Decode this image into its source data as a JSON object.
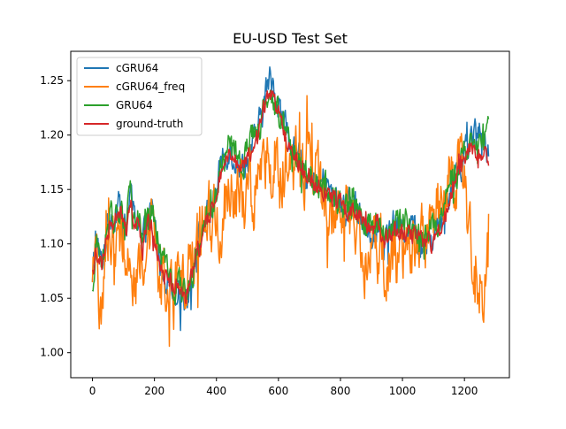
{
  "chart_data": {
    "type": "line",
    "title": "EU-USD Test Set",
    "xlabel": "",
    "ylabel": "",
    "xlim": [
      -70,
      1345
    ],
    "ylim": [
      0.977,
      1.277
    ],
    "xticks": [
      0,
      200,
      400,
      600,
      800,
      1000,
      1200
    ],
    "yticks": [
      1.0,
      1.05,
      1.1,
      1.15,
      1.2,
      1.25
    ],
    "xtick_labels": [
      "0",
      "200",
      "400",
      "600",
      "800",
      "1000",
      "1200"
    ],
    "ytick_labels": [
      "1.00",
      "1.05",
      "1.10",
      "1.15",
      "1.20",
      "1.25"
    ],
    "grid": false,
    "legend_position": "upper-left",
    "n_points": 1280,
    "series": [
      {
        "name": "cGRU64",
        "color": "#1f77b4",
        "noise": 0.012,
        "x": [
          0,
          10,
          20,
          30,
          40,
          50,
          60,
          70,
          80,
          90,
          100,
          110,
          120,
          130,
          140,
          150,
          160,
          170,
          180,
          190,
          200,
          220,
          240,
          260,
          280,
          300,
          320,
          340,
          360,
          380,
          400,
          420,
          440,
          460,
          480,
          500,
          520,
          540,
          560,
          570,
          580,
          590,
          600,
          620,
          640,
          660,
          680,
          700,
          720,
          740,
          760,
          780,
          800,
          820,
          840,
          860,
          880,
          900,
          920,
          940,
          960,
          980,
          1000,
          1020,
          1040,
          1060,
          1080,
          1100,
          1120,
          1140,
          1160,
          1180,
          1200,
          1220,
          1240,
          1260,
          1275
        ],
        "values": [
          1.06,
          1.11,
          1.09,
          1.08,
          1.1,
          1.12,
          1.13,
          1.12,
          1.14,
          1.13,
          1.12,
          1.11,
          1.15,
          1.13,
          1.12,
          1.13,
          1.1,
          1.11,
          1.12,
          1.13,
          1.12,
          1.08,
          1.07,
          1.06,
          1.06,
          1.05,
          1.07,
          1.1,
          1.12,
          1.13,
          1.15,
          1.18,
          1.19,
          1.18,
          1.17,
          1.18,
          1.19,
          1.21,
          1.24,
          1.25,
          1.25,
          1.24,
          1.23,
          1.21,
          1.19,
          1.18,
          1.17,
          1.16,
          1.15,
          1.16,
          1.15,
          1.14,
          1.14,
          1.13,
          1.14,
          1.13,
          1.12,
          1.11,
          1.12,
          1.1,
          1.11,
          1.12,
          1.11,
          1.12,
          1.11,
          1.1,
          1.1,
          1.11,
          1.12,
          1.14,
          1.16,
          1.17,
          1.18,
          1.2,
          1.2,
          1.19,
          1.19
        ]
      },
      {
        "name": "cGRU64_freq",
        "color": "#ff7f0e",
        "noise": 0.026,
        "x": [
          0,
          10,
          20,
          30,
          40,
          50,
          60,
          70,
          80,
          90,
          100,
          110,
          120,
          130,
          140,
          150,
          160,
          170,
          180,
          190,
          200,
          220,
          240,
          260,
          280,
          300,
          320,
          340,
          360,
          380,
          400,
          420,
          440,
          460,
          480,
          500,
          520,
          540,
          560,
          580,
          600,
          620,
          640,
          660,
          680,
          700,
          720,
          740,
          760,
          780,
          800,
          820,
          840,
          860,
          880,
          900,
          920,
          940,
          960,
          980,
          1000,
          1020,
          1040,
          1060,
          1080,
          1100,
          1120,
          1140,
          1160,
          1180,
          1200,
          1220,
          1240,
          1260,
          1275
        ],
        "values": [
          1.05,
          1.08,
          1.06,
          1.05,
          1.07,
          1.1,
          1.11,
          1.1,
          1.13,
          1.12,
          1.11,
          1.09,
          1.09,
          1.08,
          1.07,
          1.08,
          1.08,
          1.1,
          1.11,
          1.12,
          1.1,
          1.06,
          1.06,
          1.05,
          1.06,
          1.08,
          1.09,
          1.1,
          1.11,
          1.12,
          1.12,
          1.13,
          1.14,
          1.14,
          1.14,
          1.15,
          1.15,
          1.16,
          1.17,
          1.17,
          1.17,
          1.17,
          1.17,
          1.17,
          1.17,
          1.16,
          1.16,
          1.15,
          1.14,
          1.13,
          1.13,
          1.12,
          1.11,
          1.1,
          1.09,
          1.09,
          1.09,
          1.08,
          1.08,
          1.09,
          1.09,
          1.1,
          1.1,
          1.1,
          1.12,
          1.13,
          1.14,
          1.15,
          1.16,
          1.17,
          1.16,
          1.1,
          1.05,
          1.06,
          1.09
        ]
      },
      {
        "name": "GRU64",
        "color": "#2ca02c",
        "noise": 0.011,
        "x": [
          0,
          10,
          20,
          30,
          40,
          50,
          60,
          70,
          80,
          90,
          100,
          110,
          120,
          130,
          140,
          150,
          160,
          170,
          180,
          190,
          200,
          220,
          240,
          260,
          280,
          300,
          320,
          340,
          360,
          380,
          400,
          420,
          440,
          460,
          480,
          500,
          520,
          540,
          560,
          570,
          580,
          590,
          600,
          620,
          640,
          660,
          680,
          700,
          720,
          740,
          760,
          780,
          800,
          820,
          840,
          860,
          880,
          900,
          920,
          940,
          960,
          980,
          1000,
          1020,
          1040,
          1060,
          1080,
          1100,
          1120,
          1140,
          1160,
          1180,
          1200,
          1220,
          1240,
          1260,
          1275
        ],
        "values": [
          1.05,
          1.1,
          1.09,
          1.08,
          1.1,
          1.12,
          1.13,
          1.12,
          1.14,
          1.13,
          1.12,
          1.11,
          1.15,
          1.13,
          1.12,
          1.13,
          1.1,
          1.12,
          1.12,
          1.13,
          1.12,
          1.09,
          1.07,
          1.06,
          1.06,
          1.05,
          1.07,
          1.1,
          1.12,
          1.13,
          1.15,
          1.18,
          1.19,
          1.18,
          1.17,
          1.19,
          1.2,
          1.21,
          1.23,
          1.24,
          1.24,
          1.23,
          1.22,
          1.21,
          1.19,
          1.18,
          1.17,
          1.16,
          1.15,
          1.16,
          1.15,
          1.14,
          1.14,
          1.13,
          1.14,
          1.13,
          1.12,
          1.11,
          1.12,
          1.11,
          1.11,
          1.12,
          1.12,
          1.12,
          1.12,
          1.11,
          1.11,
          1.12,
          1.12,
          1.14,
          1.16,
          1.17,
          1.18,
          1.19,
          1.19,
          1.19,
          1.2
        ]
      },
      {
        "name": "ground-truth",
        "color": "#d62728",
        "noise": 0.007,
        "x": [
          0,
          10,
          20,
          30,
          40,
          50,
          60,
          70,
          80,
          90,
          100,
          110,
          120,
          130,
          140,
          150,
          160,
          170,
          180,
          190,
          200,
          220,
          240,
          260,
          280,
          300,
          320,
          340,
          360,
          380,
          400,
          420,
          440,
          460,
          480,
          500,
          520,
          540,
          560,
          570,
          580,
          590,
          600,
          620,
          640,
          660,
          680,
          700,
          720,
          740,
          760,
          780,
          800,
          820,
          840,
          860,
          880,
          900,
          920,
          940,
          960,
          980,
          1000,
          1020,
          1040,
          1060,
          1080,
          1100,
          1120,
          1140,
          1160,
          1180,
          1200,
          1220,
          1240,
          1260,
          1275
        ],
        "values": [
          1.07,
          1.09,
          1.09,
          1.08,
          1.1,
          1.11,
          1.12,
          1.12,
          1.13,
          1.13,
          1.12,
          1.11,
          1.14,
          1.13,
          1.12,
          1.12,
          1.1,
          1.11,
          1.12,
          1.12,
          1.11,
          1.08,
          1.07,
          1.06,
          1.06,
          1.05,
          1.07,
          1.09,
          1.11,
          1.13,
          1.15,
          1.17,
          1.18,
          1.18,
          1.17,
          1.18,
          1.19,
          1.21,
          1.23,
          1.24,
          1.24,
          1.23,
          1.22,
          1.2,
          1.19,
          1.18,
          1.17,
          1.16,
          1.15,
          1.15,
          1.15,
          1.14,
          1.14,
          1.13,
          1.13,
          1.13,
          1.12,
          1.11,
          1.12,
          1.1,
          1.11,
          1.11,
          1.11,
          1.11,
          1.11,
          1.1,
          1.1,
          1.1,
          1.11,
          1.13,
          1.15,
          1.17,
          1.18,
          1.19,
          1.18,
          1.18,
          1.18
        ]
      }
    ]
  }
}
